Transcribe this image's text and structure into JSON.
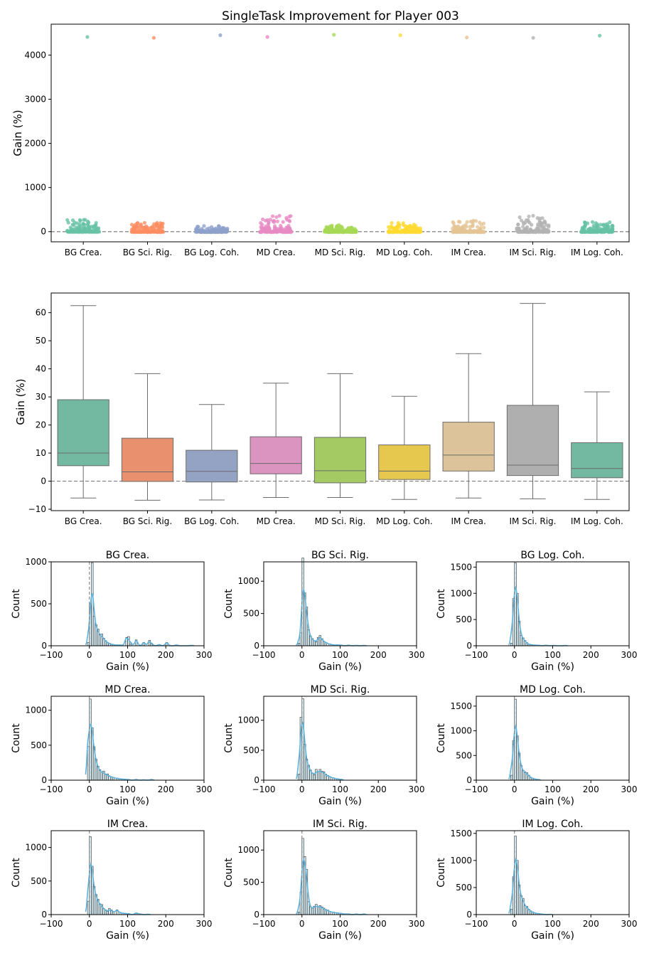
{
  "figure_title": "SingleTask Improvement for Player 003",
  "chart_data": [
    {
      "type": "scatter",
      "title": "SingleTask Improvement for Player 003",
      "ylabel": "Gain (%)",
      "xlabel": "",
      "categories": [
        "BG Crea.",
        "BG Sci. Rig.",
        "BG Log. Coh.",
        "MD Crea.",
        "MD Sci. Rig.",
        "MD Log. Coh.",
        "IM Crea.",
        "IM Sci. Rig.",
        "IM Log. Coh."
      ],
      "colors": [
        "#66c2a5",
        "#fc8d62",
        "#8da0cb",
        "#e78ac3",
        "#a6d854",
        "#ffd92f",
        "#e5c494",
        "#b3b3b3",
        "#66c2a5"
      ],
      "ylim": [
        -230,
        4700
      ],
      "yticks": [
        0,
        1000,
        2000,
        3000,
        4000
      ],
      "reference_line_y": 0,
      "series": [
        {
          "category": "BG Crea.",
          "bulk_range": [
            -5,
            270
          ],
          "max_outlier": 4410
        },
        {
          "category": "BG Sci. Rig.",
          "bulk_range": [
            -7,
            200
          ],
          "max_outlier": 4390
        },
        {
          "category": "BG Log. Coh.",
          "bulk_range": [
            -7,
            130
          ],
          "max_outlier": 4450
        },
        {
          "category": "MD Crea.",
          "bulk_range": [
            -6,
            360
          ],
          "max_outlier": 4410
        },
        {
          "category": "MD Sci. Rig.",
          "bulk_range": [
            -6,
            150
          ],
          "max_outlier": 4460
        },
        {
          "category": "MD Log. Coh.",
          "bulk_range": [
            -7,
            200
          ],
          "max_outlier": 4450
        },
        {
          "category": "IM Crea.",
          "bulk_range": [
            -6,
            250
          ],
          "max_outlier": 4400
        },
        {
          "category": "IM Sci. Rig.",
          "bulk_range": [
            -6,
            360
          ],
          "max_outlier": 4390
        },
        {
          "category": "IM Log. Coh.",
          "bulk_range": [
            -6,
            220
          ],
          "max_outlier": 4440
        }
      ]
    },
    {
      "type": "box",
      "ylabel": "Gain (%)",
      "xlabel": "",
      "ylim": [
        -10.5,
        67
      ],
      "yticks": [
        -10,
        0,
        10,
        20,
        30,
        40,
        50,
        60
      ],
      "reference_line_y": 0,
      "categories": [
        "BG Crea.",
        "BG Sci. Rig.",
        "BG Log. Coh.",
        "MD Crea.",
        "MD Sci. Rig.",
        "MD Log. Coh.",
        "IM Crea.",
        "IM Sci. Rig.",
        "IM Log. Coh."
      ],
      "colors": [
        "#73b9a2",
        "#e9916f",
        "#94a3c4",
        "#db93c0",
        "#a4cb63",
        "#e5c84d",
        "#dcc399",
        "#afafaf",
        "#73b9a2"
      ],
      "boxes": [
        {
          "whisker_low": -6.0,
          "q1": 5.5,
          "median": 10.0,
          "q3": 29.0,
          "whisker_high": 62.5
        },
        {
          "whisker_low": -6.8,
          "q1": -0.1,
          "median": 3.3,
          "q3": 15.3,
          "whisker_high": 38.3
        },
        {
          "whisker_low": -6.7,
          "q1": -0.3,
          "median": 3.5,
          "q3": 11.0,
          "whisker_high": 27.3
        },
        {
          "whisker_low": -5.8,
          "q1": 2.6,
          "median": 6.3,
          "q3": 15.8,
          "whisker_high": 34.9
        },
        {
          "whisker_low": -5.8,
          "q1": -0.6,
          "median": 3.7,
          "q3": 15.6,
          "whisker_high": 38.3
        },
        {
          "whisker_low": -6.5,
          "q1": 0.6,
          "median": 3.6,
          "q3": 12.9,
          "whisker_high": 30.2
        },
        {
          "whisker_low": -6.0,
          "q1": 3.6,
          "median": 9.3,
          "q3": 21.0,
          "whisker_high": 45.4
        },
        {
          "whisker_low": -6.3,
          "q1": 2.0,
          "median": 5.7,
          "q3": 27.0,
          "whisker_high": 63.3
        },
        {
          "whisker_low": -6.5,
          "q1": 1.2,
          "median": 4.5,
          "q3": 13.7,
          "whisker_high": 31.8
        }
      ]
    },
    {
      "type": "histogram",
      "xlabel": "Gain (%)",
      "ylabel": "Count",
      "xlim": [
        -100,
        300
      ],
      "xticks": [
        -100,
        0,
        100,
        200,
        300
      ],
      "bar_fill": "#add8e6",
      "kde_color": "#5fb3dc",
      "reference_line_x": 0,
      "panels": [
        {
          "title": "BG Crea.",
          "ymax": 1000,
          "yticks": [
            0,
            500,
            1000
          ],
          "bins": [
            [
              -5,
              40
            ],
            [
              0,
              500
            ],
            [
              5,
              990
            ],
            [
              10,
              350
            ],
            [
              15,
              250
            ],
            [
              20,
              200
            ],
            [
              25,
              130
            ],
            [
              30,
              140
            ],
            [
              35,
              90
            ],
            [
              40,
              60
            ],
            [
              45,
              40
            ],
            [
              50,
              30
            ],
            [
              55,
              20
            ],
            [
              60,
              15
            ],
            [
              65,
              10
            ],
            [
              70,
              10
            ],
            [
              80,
              10
            ],
            [
              95,
              100
            ],
            [
              100,
              110
            ],
            [
              105,
              20
            ],
            [
              120,
              70
            ],
            [
              140,
              40
            ],
            [
              155,
              65
            ],
            [
              160,
              20
            ],
            [
              180,
              15
            ],
            [
              200,
              40
            ],
            [
              225,
              10
            ],
            [
              265,
              5
            ]
          ]
        },
        {
          "title": "BG Sci. Rig.",
          "ymax": 1300,
          "yticks": [
            0,
            500,
            1000
          ],
          "bins": [
            [
              -10,
              40
            ],
            [
              -5,
              200
            ],
            [
              0,
              1360
            ],
            [
              5,
              820
            ],
            [
              10,
              600
            ],
            [
              15,
              250
            ],
            [
              20,
              150
            ],
            [
              25,
              110
            ],
            [
              30,
              80
            ],
            [
              35,
              60
            ],
            [
              40,
              130
            ],
            [
              45,
              160
            ],
            [
              50,
              110
            ],
            [
              55,
              70
            ],
            [
              60,
              50
            ],
            [
              70,
              30
            ],
            [
              80,
              15
            ],
            [
              90,
              15
            ],
            [
              100,
              10
            ],
            [
              120,
              10
            ],
            [
              140,
              5
            ],
            [
              160,
              5
            ]
          ]
        },
        {
          "title": "BG Log. Coh.",
          "ymax": 1600,
          "yticks": [
            0,
            500,
            1000,
            1500
          ],
          "bins": [
            [
              -10,
              50
            ],
            [
              -5,
              900
            ],
            [
              0,
              1580
            ],
            [
              5,
              1000
            ],
            [
              10,
              470
            ],
            [
              15,
              200
            ],
            [
              20,
              150
            ],
            [
              25,
              100
            ],
            [
              30,
              60
            ],
            [
              35,
              30
            ],
            [
              40,
              20
            ],
            [
              50,
              15
            ],
            [
              60,
              10
            ],
            [
              80,
              10
            ],
            [
              100,
              5
            ],
            [
              130,
              5
            ]
          ]
        },
        {
          "title": "MD Crea.",
          "ymax": 1200,
          "yticks": [
            0,
            500,
            1000
          ],
          "bins": [
            [
              -5,
              480
            ],
            [
              0,
              1160
            ],
            [
              5,
              750
            ],
            [
              10,
              480
            ],
            [
              15,
              300
            ],
            [
              20,
              200
            ],
            [
              25,
              150
            ],
            [
              30,
              120
            ],
            [
              35,
              130
            ],
            [
              40,
              80
            ],
            [
              45,
              90
            ],
            [
              50,
              60
            ],
            [
              55,
              50
            ],
            [
              60,
              40
            ],
            [
              70,
              30
            ],
            [
              80,
              20
            ],
            [
              90,
              15
            ],
            [
              100,
              10
            ],
            [
              120,
              10
            ],
            [
              140,
              5
            ],
            [
              160,
              10
            ]
          ]
        },
        {
          "title": "MD Sci. Rig.",
          "ymax": 1400,
          "yticks": [
            0,
            500,
            1000
          ],
          "bins": [
            [
              -10,
              100
            ],
            [
              -5,
              1050
            ],
            [
              0,
              1360
            ],
            [
              5,
              600
            ],
            [
              10,
              350
            ],
            [
              15,
              250
            ],
            [
              20,
              170
            ],
            [
              25,
              120
            ],
            [
              30,
              90
            ],
            [
              35,
              180
            ],
            [
              40,
              140
            ],
            [
              45,
              180
            ],
            [
              50,
              150
            ],
            [
              55,
              140
            ],
            [
              60,
              100
            ],
            [
              65,
              80
            ],
            [
              70,
              60
            ],
            [
              80,
              40
            ],
            [
              90,
              25
            ],
            [
              100,
              15
            ]
          ]
        },
        {
          "title": "MD Log. Coh.",
          "ymax": 1700,
          "yticks": [
            0,
            500,
            1000,
            1500
          ],
          "bins": [
            [
              -10,
              100
            ],
            [
              -5,
              800
            ],
            [
              0,
              1640
            ],
            [
              5,
              900
            ],
            [
              10,
              550
            ],
            [
              15,
              300
            ],
            [
              20,
              200
            ],
            [
              25,
              170
            ],
            [
              30,
              150
            ],
            [
              35,
              100
            ],
            [
              40,
              60
            ],
            [
              45,
              40
            ],
            [
              50,
              25
            ],
            [
              60,
              15
            ]
          ]
        },
        {
          "title": "IM Crea.",
          "ymax": 1250,
          "yticks": [
            0,
            500,
            1000
          ],
          "bins": [
            [
              -5,
              200
            ],
            [
              0,
              1160
            ],
            [
              5,
              720
            ],
            [
              10,
              420
            ],
            [
              15,
              300
            ],
            [
              20,
              230
            ],
            [
              25,
              160
            ],
            [
              30,
              150
            ],
            [
              35,
              90
            ],
            [
              40,
              70
            ],
            [
              45,
              50
            ],
            [
              50,
              90
            ],
            [
              55,
              70
            ],
            [
              60,
              40
            ],
            [
              70,
              70
            ],
            [
              80,
              30
            ],
            [
              90,
              20
            ],
            [
              100,
              15
            ],
            [
              120,
              25
            ],
            [
              130,
              10
            ],
            [
              150,
              5
            ]
          ]
        },
        {
          "title": "IM Sci. Rig.",
          "ymax": 1300,
          "yticks": [
            0,
            500,
            1000
          ],
          "bins": [
            [
              -10,
              40
            ],
            [
              -5,
              350
            ],
            [
              0,
              1180
            ],
            [
              5,
              900
            ],
            [
              10,
              700
            ],
            [
              15,
              200
            ],
            [
              20,
              120
            ],
            [
              25,
              100
            ],
            [
              30,
              130
            ],
            [
              35,
              160
            ],
            [
              40,
              120
            ],
            [
              45,
              140
            ],
            [
              50,
              120
            ],
            [
              55,
              100
            ],
            [
              60,
              80
            ],
            [
              65,
              70
            ],
            [
              70,
              50
            ],
            [
              80,
              40
            ],
            [
              90,
              30
            ],
            [
              100,
              20
            ],
            [
              110,
              10
            ],
            [
              120,
              10
            ],
            [
              140,
              10
            ],
            [
              160,
              10
            ]
          ]
        },
        {
          "title": "IM Log. Coh.",
          "ymax": 1550,
          "yticks": [
            0,
            500,
            1000,
            1500
          ],
          "bins": [
            [
              -10,
              100
            ],
            [
              -5,
              700
            ],
            [
              0,
              1450
            ],
            [
              5,
              1000
            ],
            [
              10,
              550
            ],
            [
              15,
              350
            ],
            [
              20,
              300
            ],
            [
              25,
              170
            ],
            [
              30,
              150
            ],
            [
              35,
              100
            ],
            [
              40,
              70
            ],
            [
              45,
              50
            ],
            [
              50,
              30
            ],
            [
              60,
              20
            ],
            [
              70,
              10
            ],
            [
              90,
              5
            ]
          ]
        }
      ]
    }
  ]
}
